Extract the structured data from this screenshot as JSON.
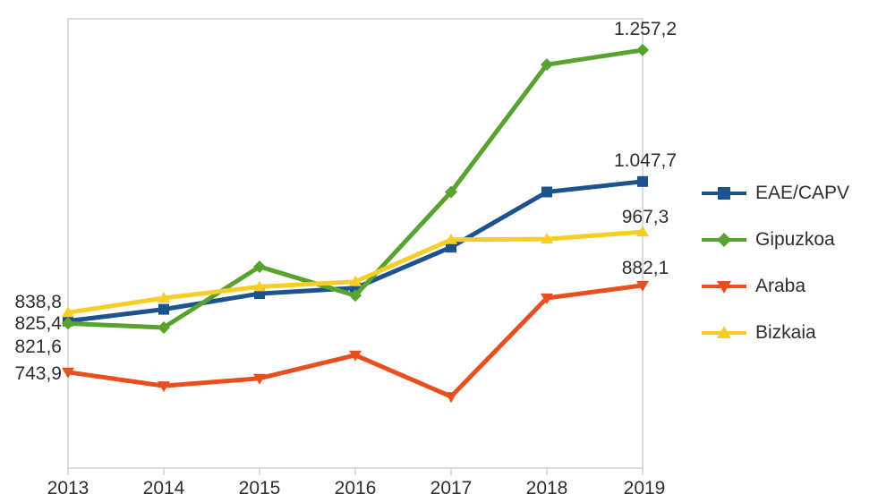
{
  "chart_data": {
    "type": "line",
    "title": "",
    "xlabel": "",
    "ylabel": "",
    "categories": [
      "2013",
      "2014",
      "2015",
      "2016",
      "2017",
      "2018",
      "2019"
    ],
    "series": [
      {
        "name": "EAE/CAPV",
        "color": "#1C538F",
        "marker": "square",
        "values": [
          825.4,
          844,
          869,
          878,
          943,
          1031,
          1047.7
        ]
      },
      {
        "name": "Gipuzkoa",
        "color": "#58A32F",
        "marker": "diamond",
        "values": [
          821.6,
          815,
          912,
          866,
          1031,
          1234,
          1257.2
        ]
      },
      {
        "name": "Araba",
        "color": "#E94E1F",
        "marker": "triangle-down",
        "values": [
          743.9,
          722,
          734,
          771,
          705,
          862,
          882.1
        ]
      },
      {
        "name": "Bizkaia",
        "color": "#F6CE26",
        "marker": "triangle-up",
        "values": [
          838.8,
          862,
          880,
          888,
          955,
          956,
          967.3
        ]
      }
    ],
    "draw_order": [
      0,
      1,
      2,
      3
    ],
    "ylim": [
      591,
      1307
    ],
    "grid": false,
    "legend_position": "right",
    "axis_color": "#C9C9C9",
    "left_value_labels": [
      "838,8",
      "825,4",
      "821,6",
      "743,9"
    ],
    "right_value_labels": [
      "1.257,2",
      "1.047,7",
      "967,3",
      "882,1"
    ]
  }
}
